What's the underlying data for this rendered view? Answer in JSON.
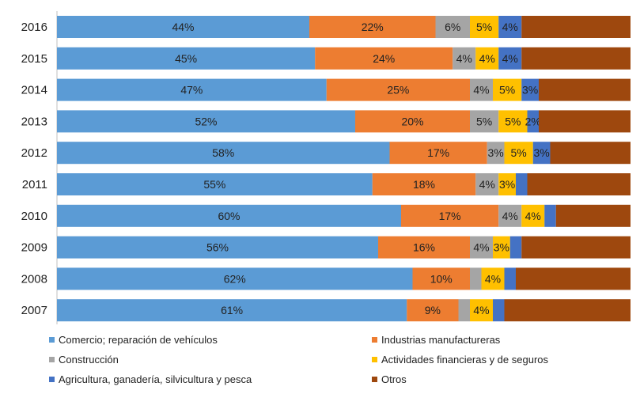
{
  "chart_data": {
    "type": "bar",
    "orientation": "horizontal",
    "stacked": true,
    "percent": true,
    "categories": [
      "2016",
      "2015",
      "2014",
      "2013",
      "2012",
      "2011",
      "2010",
      "2009",
      "2008",
      "2007"
    ],
    "series": [
      {
        "name": "Comercio; reparación de vehículos",
        "color": "#5b9bd5",
        "values": [
          44,
          45,
          47,
          52,
          58,
          55,
          60,
          56,
          62,
          61
        ],
        "labels": [
          "44%",
          "45%",
          "47%",
          "52%",
          "58%",
          "55%",
          "60%",
          "56%",
          "62%",
          "61%"
        ]
      },
      {
        "name": "Industrias manufactureras",
        "color": "#ed7d31",
        "values": [
          22,
          24,
          25,
          20,
          17,
          18,
          17,
          16,
          10,
          9
        ],
        "labels": [
          "22%",
          "24%",
          "25%",
          "20%",
          "17%",
          "18%",
          "17%",
          "16%",
          "10%",
          "9%"
        ]
      },
      {
        "name": "Construcción",
        "color": "#a5a5a5",
        "values": [
          6,
          4,
          4,
          5,
          3,
          4,
          4,
          4,
          2,
          2
        ],
        "labels": [
          "6%",
          "4%",
          "4%",
          "5%",
          "3%",
          "4%",
          "4%",
          "4%",
          "",
          ""
        ]
      },
      {
        "name": "Actividades financieras y de seguros",
        "color": "#ffc000",
        "values": [
          5,
          4,
          5,
          5,
          5,
          3,
          4,
          3,
          4,
          4
        ],
        "labels": [
          "5%",
          "4%",
          "5%",
          "5%",
          "5%",
          "3%",
          "4%",
          "3%",
          "4%",
          "4%"
        ]
      },
      {
        "name": "Agricultura, ganadería,  silvicultura y pesca",
        "color": "#4472c4",
        "values": [
          4,
          4,
          3,
          2,
          3,
          2,
          2,
          2,
          2,
          2
        ],
        "labels": [
          "4%",
          "4%",
          "3%",
          "2%",
          "3%",
          "",
          "",
          "",
          "",
          ""
        ]
      },
      {
        "name": "Otros",
        "color": "#9e480e",
        "values": [
          19,
          19,
          16,
          16,
          14,
          18,
          13,
          19,
          20,
          22
        ],
        "labels": [
          "",
          "",
          "",
          "",
          "",
          "",
          "",
          "",
          "",
          ""
        ]
      }
    ],
    "xlim": [
      0,
      100
    ]
  }
}
